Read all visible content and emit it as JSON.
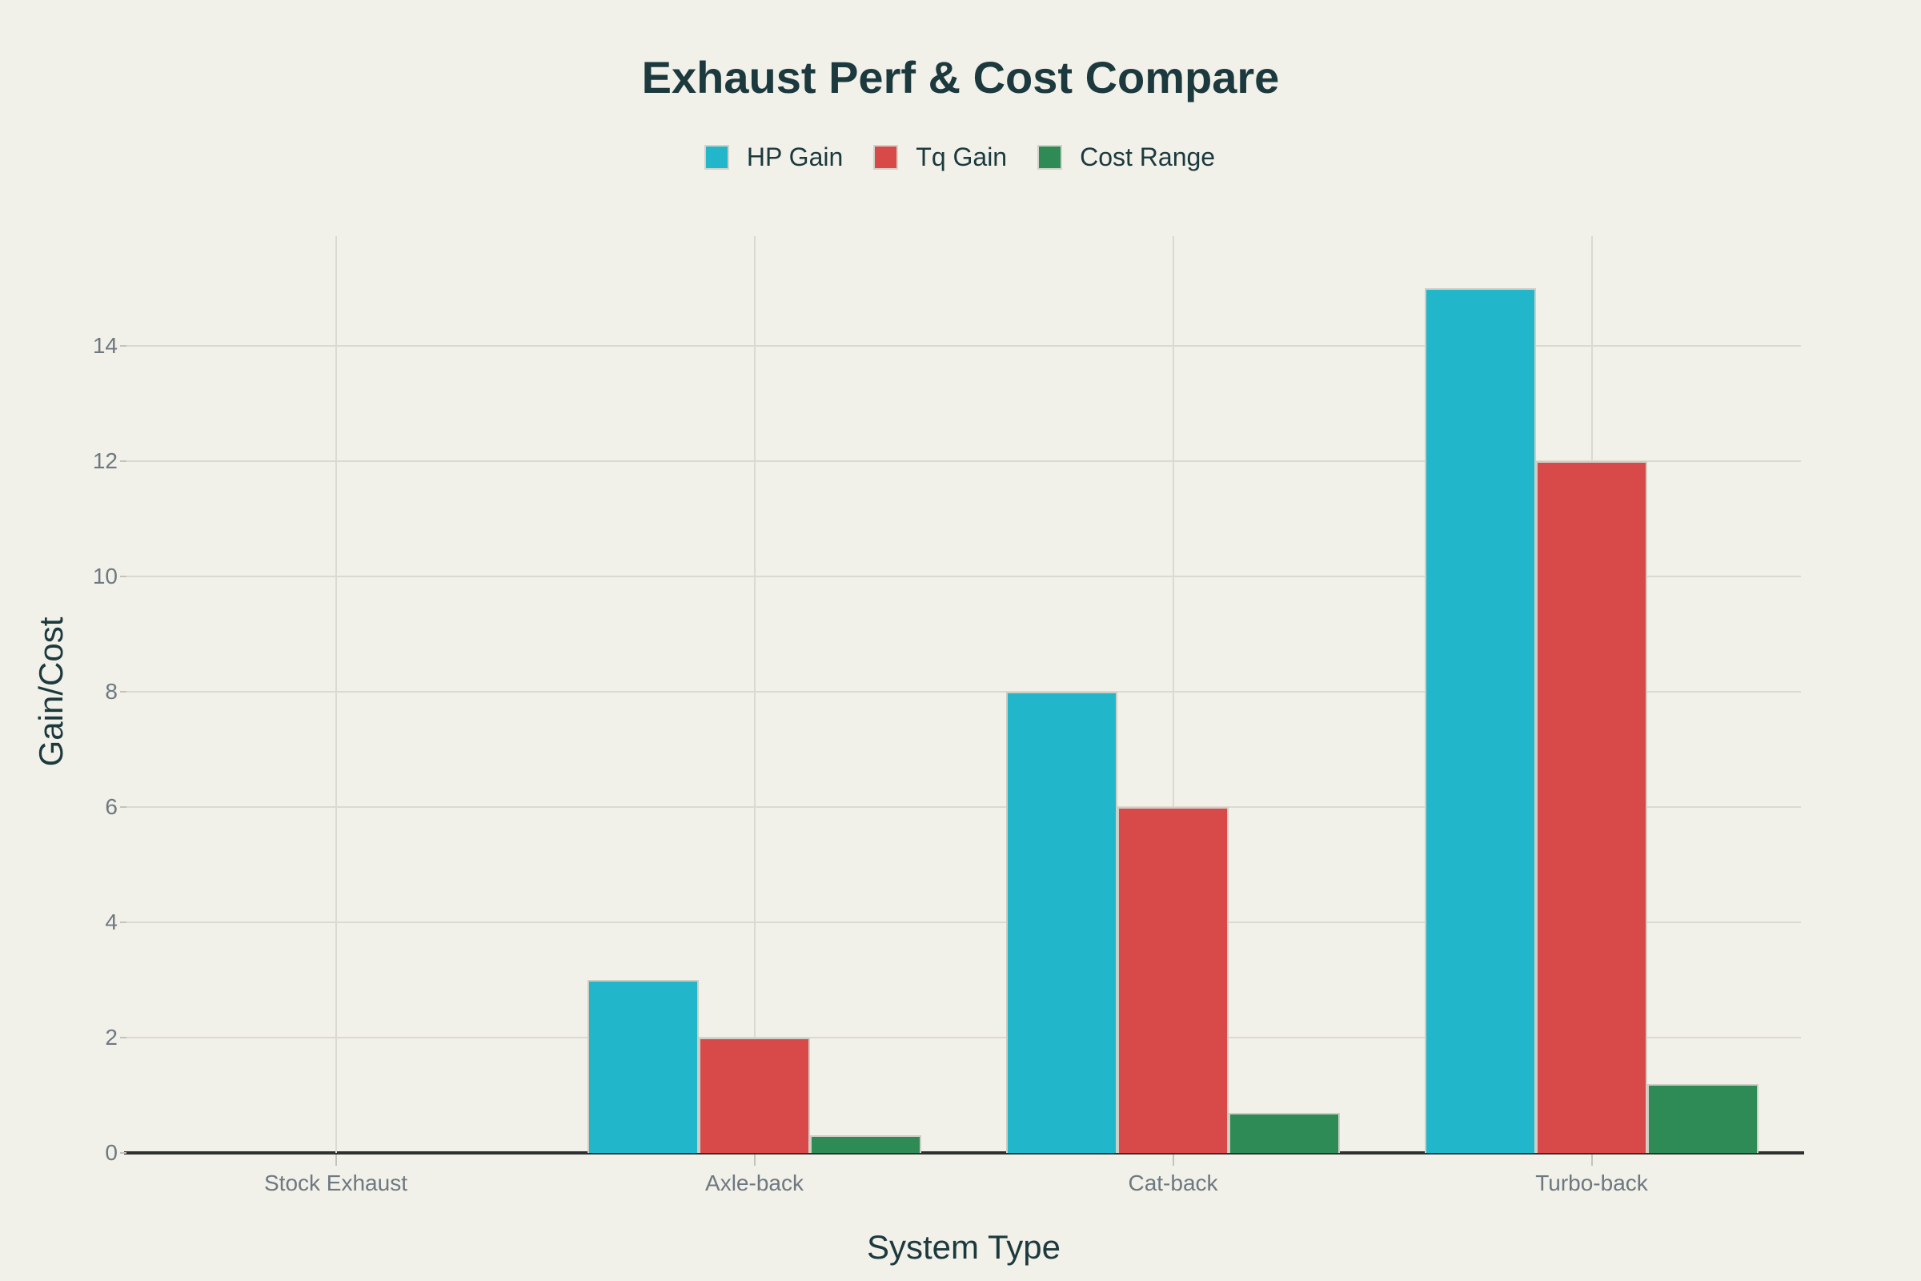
{
  "colors": {
    "background": "#f1f0e9",
    "title_text": "#1c393e",
    "tick_text": "#6e7880",
    "grid": "#dcd9d0",
    "axis_line": "#2d2f30",
    "bar_edge": "#cfcec5",
    "hp_gain": "#21b6c9",
    "tq_gain": "#d84a4a",
    "cost_range": "#2e8b56"
  },
  "chart_data": {
    "type": "bar",
    "title": "Exhaust Perf & Cost Compare",
    "xlabel": "System Type",
    "ylabel": "Gain/Cost",
    "categories": [
      "Stock Exhaust",
      "Axle-back",
      "Cat-back",
      "Turbo-back"
    ],
    "series": [
      {
        "name": "HP Gain",
        "color": "#21b6c9",
        "values": [
          0,
          3,
          8,
          15
        ]
      },
      {
        "name": "Tq Gain",
        "color": "#d84a4a",
        "values": [
          0,
          2,
          6,
          12
        ]
      },
      {
        "name": "Cost Range",
        "color": "#2e8b56",
        "values": [
          0,
          0.3,
          0.7,
          1.2
        ]
      }
    ],
    "ylim": [
      0,
      15.9
    ],
    "yticks": [
      0,
      2,
      4,
      6,
      8,
      10,
      12,
      14
    ],
    "legend_position": "top-center",
    "grid": true,
    "vertical_grid_at_category_centers": true
  }
}
